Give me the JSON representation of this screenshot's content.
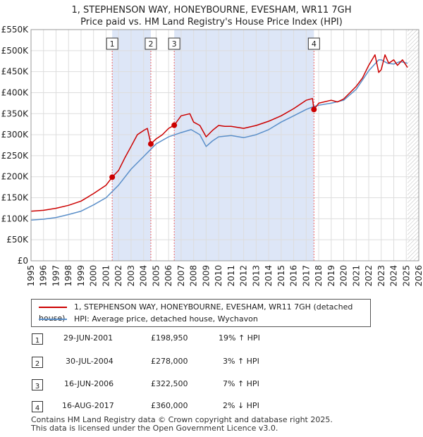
{
  "title": {
    "line1": "1, STEPHENSON WAY, HONEYBOURNE, EVESHAM, WR11 7GH",
    "line2": "Price paid vs. HM Land Registry's House Price Index (HPI)"
  },
  "colors": {
    "property": "#cc0000",
    "hpi": "#5b8fc9",
    "shade": "#dde6f7",
    "grid": "#dddddd",
    "marker_line": "#ee6666"
  },
  "legend": {
    "property_label": "1, STEPHENSON WAY, HONEYBOURNE, EVESHAM, WR11 7GH (detached house)",
    "hpi_label": "HPI: Average price, detached house, Wychavon"
  },
  "sales": [
    {
      "num": "1",
      "date": "29-JUN-2001",
      "price": "£198,950",
      "hpi_diff": "19% ↑ HPI"
    },
    {
      "num": "2",
      "date": "30-JUL-2004",
      "price": "£278,000",
      "hpi_diff": "3% ↑ HPI"
    },
    {
      "num": "3",
      "date": "16-JUN-2006",
      "price": "£322,500",
      "hpi_diff": "7% ↑ HPI"
    },
    {
      "num": "4",
      "date": "16-AUG-2017",
      "price": "£360,000",
      "hpi_diff": "2% ↓ HPI"
    }
  ],
  "footer": {
    "line1": "Contains HM Land Registry data © Crown copyright and database right 2025.",
    "line2": "This data is licensed under the Open Government Licence v3.0."
  },
  "chart_data": {
    "type": "line",
    "title": "1, STEPHENSON WAY, HONEYBOURNE, EVESHAM, WR11 7GH",
    "subtitle": "Price paid vs. HM Land Registry's House Price Index (HPI)",
    "xlim": [
      1995,
      2026
    ],
    "ylim": [
      0,
      550000
    ],
    "yticks": [
      0,
      50000,
      100000,
      150000,
      200000,
      250000,
      300000,
      350000,
      400000,
      450000,
      500000,
      550000
    ],
    "ytick_labels": [
      "£0",
      "£50K",
      "£100K",
      "£150K",
      "£200K",
      "£250K",
      "£300K",
      "£350K",
      "£400K",
      "£450K",
      "£500K",
      "£550K"
    ],
    "xticks": [
      1995,
      1996,
      1997,
      1998,
      1999,
      2000,
      2001,
      2002,
      2003,
      2004,
      2005,
      2006,
      2007,
      2008,
      2009,
      2010,
      2011,
      2012,
      2013,
      2014,
      2015,
      2016,
      2017,
      2018,
      2019,
      2020,
      2021,
      2022,
      2023,
      2024,
      2025,
      2026
    ],
    "shaded_periods": [
      [
        2001.49,
        2004.58
      ],
      [
        2006.45,
        2017.62
      ]
    ],
    "data_end": 2025.1,
    "sale_markers": [
      {
        "label": "1",
        "x": 2001.49,
        "y": 198950
      },
      {
        "label": "2",
        "x": 2004.58,
        "y": 278000
      },
      {
        "label": "3",
        "x": 2006.45,
        "y": 322500
      },
      {
        "label": "4",
        "x": 2017.62,
        "y": 360000
      }
    ],
    "series": [
      {
        "name": "1, STEPHENSON WAY, HONEYBOURNE, EVESHAM, WR11 7GH (detached house)",
        "x": [
          1995,
          1996,
          1997,
          1998,
          1999,
          2000,
          2001,
          2001.49,
          2002,
          2002.5,
          2003,
          2003.5,
          2004,
          2004.3,
          2004.58,
          2005,
          2005.5,
          2006,
          2006.45,
          2007,
          2007.7,
          2008,
          2008.5,
          2009,
          2009.5,
          2010,
          2010.5,
          2011,
          2012,
          2013,
          2014,
          2015,
          2016,
          2017,
          2017.5,
          2017.62,
          2018,
          2019,
          2019.5,
          2020,
          2020.5,
          2021,
          2021.5,
          2022,
          2022.5,
          2022.8,
          2023,
          2023.3,
          2023.6,
          2024,
          2024.3,
          2024.7,
          2025.1
        ],
        "values": [
          118000,
          120000,
          125000,
          132000,
          142000,
          160000,
          180000,
          198950,
          215000,
          245000,
          272000,
          300000,
          310000,
          315000,
          278000,
          290000,
          300000,
          315000,
          322500,
          345000,
          350000,
          330000,
          322000,
          295000,
          310000,
          322000,
          320000,
          320000,
          315000,
          322000,
          332000,
          345000,
          362000,
          382000,
          386000,
          360000,
          375000,
          382000,
          378000,
          385000,
          400000,
          415000,
          435000,
          465000,
          490000,
          448000,
          455000,
          490000,
          470000,
          478000,
          465000,
          478000,
          460000
        ]
      },
      {
        "name": "HPI: Average price, detached house, Wychavon",
        "x": [
          1995,
          1996,
          1997,
          1998,
          1999,
          2000,
          2001,
          2002,
          2003,
          2004,
          2004.5,
          2005,
          2006,
          2007,
          2007.8,
          2008.5,
          2009,
          2009.5,
          2010,
          2011,
          2012,
          2013,
          2014,
          2015,
          2016,
          2017,
          2017.6,
          2018,
          2019,
          2020,
          2021,
          2022,
          2022.8,
          2023,
          2023.5,
          2024,
          2024.5,
          2025.1
        ],
        "values": [
          97000,
          99000,
          103000,
          110000,
          118000,
          133000,
          150000,
          180000,
          218000,
          248000,
          263000,
          278000,
          295000,
          305000,
          312000,
          300000,
          272000,
          285000,
          295000,
          298000,
          293000,
          300000,
          312000,
          330000,
          345000,
          360000,
          367000,
          370000,
          375000,
          382000,
          408000,
          452000,
          478000,
          478000,
          470000,
          468000,
          474000,
          470000
        ]
      }
    ]
  }
}
